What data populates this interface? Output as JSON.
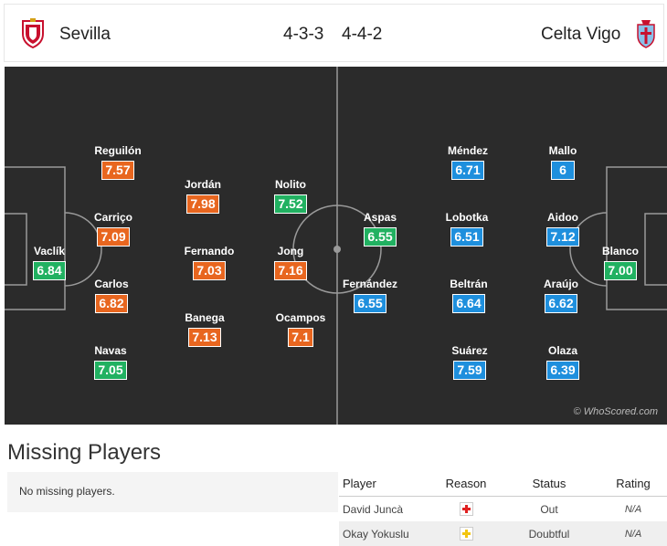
{
  "match": {
    "home_team": "Sevilla",
    "home_formation": "4-3-3",
    "away_formation": "4-4-2",
    "away_team": "Celta Vigo"
  },
  "colors": {
    "rating_home": "#e8661f",
    "rating_best": "#21b161",
    "rating_away": "#1e8fdd",
    "pitch": "#2b2b2b"
  },
  "home_players": [
    {
      "name": "Vaclík",
      "rating": "6.84",
      "color": "green"
    },
    {
      "name": "Reguilón",
      "rating": "7.57",
      "color": "orange"
    },
    {
      "name": "Carriço",
      "rating": "7.09",
      "color": "orange"
    },
    {
      "name": "Carlos",
      "rating": "6.82",
      "color": "orange"
    },
    {
      "name": "Navas",
      "rating": "7.05",
      "color": "green"
    },
    {
      "name": "Jordán",
      "rating": "7.98",
      "color": "orange"
    },
    {
      "name": "Fernando",
      "rating": "7.03",
      "color": "orange"
    },
    {
      "name": "Banega",
      "rating": "7.13",
      "color": "orange"
    },
    {
      "name": "Nolito",
      "rating": "7.52",
      "color": "green"
    },
    {
      "name": "Jong",
      "rating": "7.16",
      "color": "orange"
    },
    {
      "name": "Ocampos",
      "rating": "7.1",
      "color": "orange"
    }
  ],
  "away_players": [
    {
      "name": "Aspas",
      "rating": "6.55",
      "color": "green"
    },
    {
      "name": "Fernández",
      "rating": "6.55",
      "color": "blue"
    },
    {
      "name": "Méndez",
      "rating": "6.71",
      "color": "blue"
    },
    {
      "name": "Lobotka",
      "rating": "6.51",
      "color": "blue"
    },
    {
      "name": "Beltrán",
      "rating": "6.64",
      "color": "blue"
    },
    {
      "name": "Suárez",
      "rating": "7.59",
      "color": "blue"
    },
    {
      "name": "Mallo",
      "rating": "6",
      "color": "blue"
    },
    {
      "name": "Aidoo",
      "rating": "7.12",
      "color": "blue"
    },
    {
      "name": "Araújo",
      "rating": "6.62",
      "color": "blue"
    },
    {
      "name": "Olaza",
      "rating": "6.39",
      "color": "blue"
    },
    {
      "name": "Blanco",
      "rating": "7.00",
      "color": "green"
    }
  ],
  "watermark": "© WhoScored.com",
  "missing": {
    "title": "Missing Players",
    "home_text": "No missing players.",
    "headers": {
      "player": "Player",
      "reason": "Reason",
      "status": "Status",
      "rating": "Rating"
    },
    "rows": [
      {
        "player": "David Juncà",
        "reason_icon": "red-cross-injury-icon",
        "status": "Out",
        "rating": "N/A"
      },
      {
        "player": "Okay Yokuslu",
        "reason_icon": "yellow-cross-doubtful-icon",
        "status": "Doubtful",
        "rating": "N/A"
      }
    ]
  }
}
